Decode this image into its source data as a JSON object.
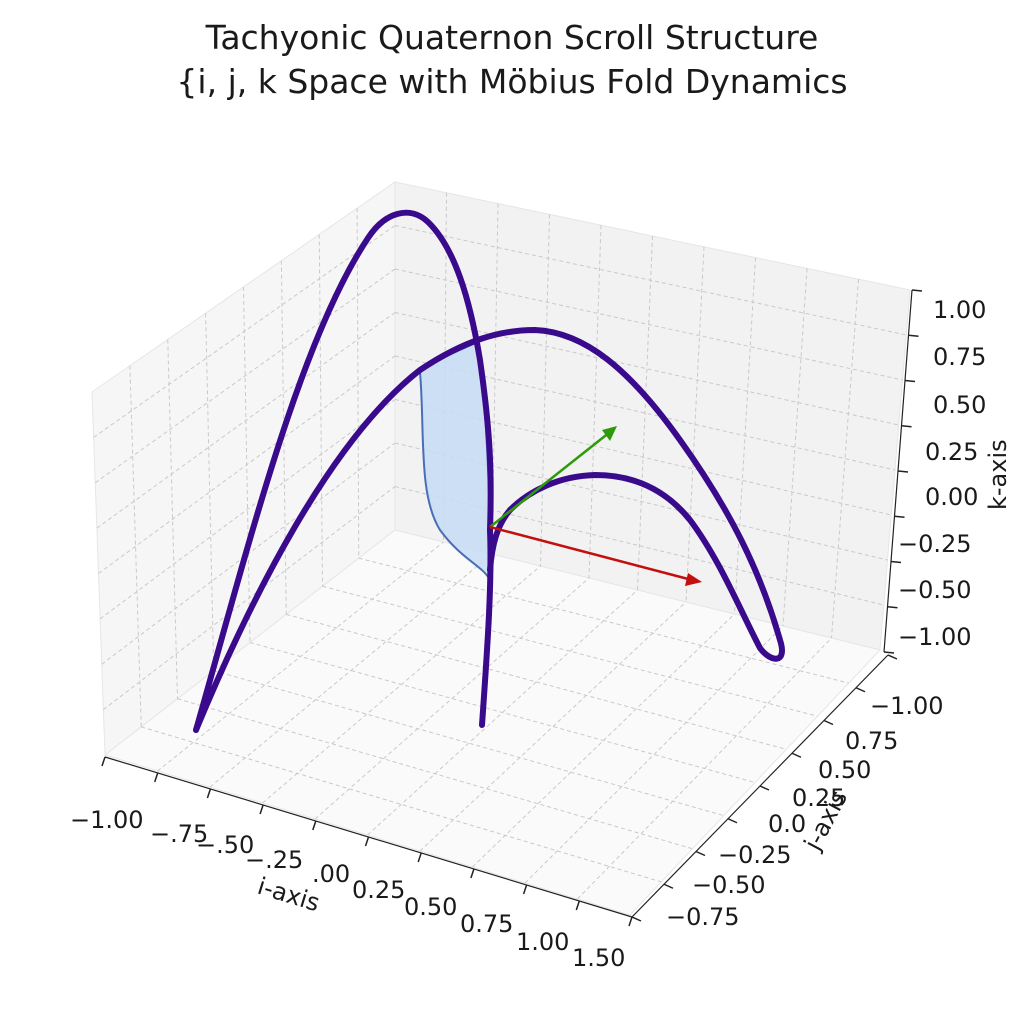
{
  "chart_data": {
    "type": "line",
    "title": "Tachyonic Quaternon Scroll Structure",
    "subtitle": "{i, j, k Space with Möbius Fold Dynamics",
    "xlabel": "i-axis",
    "ylabel": "j-axis",
    "zlabel": "k-axis",
    "x_ticks": [
      "−1.00",
      "−.75",
      "−.50",
      "−.25",
      ".00",
      "0.25",
      "0.50",
      "0.75",
      "1.00",
      "1.50"
    ],
    "y_ticks": [
      "−1.00",
      "0.75",
      "0.50",
      "0.25",
      "0.0",
      "−0.25",
      "−0.50",
      "−0.75"
    ],
    "z_ticks": [
      "1.00",
      "0.75",
      "0.50",
      "0.25",
      "0.00",
      "−0.25",
      "−0.50",
      "−1.00"
    ],
    "grid": true,
    "colors": {
      "curve": "#3a0a8c",
      "fill": "#c7dcf5",
      "fill_edge": "#4a6db8",
      "green_vector": "#2e9a0a",
      "red_vector": "#c40f0f"
    }
  }
}
